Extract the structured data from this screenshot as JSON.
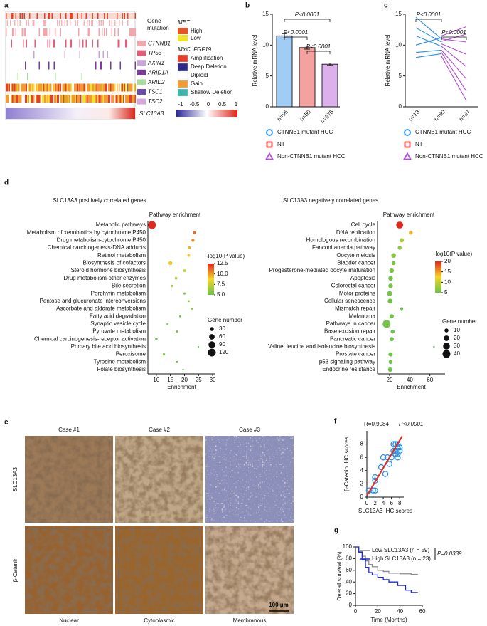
{
  "panel_labels": [
    "a",
    "b",
    "c",
    "d",
    "e",
    "f",
    "g"
  ],
  "panel_a": {
    "mutation_title": [
      "Gene",
      "mutation"
    ],
    "genes": [
      "CTNNB1",
      "TP53",
      "AXIN1",
      "ARID1A",
      "ARID2",
      "TSC1",
      "TSC2"
    ],
    "gene_colors": [
      "#f5a4a9",
      "#e65b78",
      "#c9a6da",
      "#7a3b9d",
      "#a9dc9c",
      "#6b4daf",
      "#d6a6dc"
    ],
    "met_title": "MET",
    "met_levels": [
      {
        "label": "High",
        "color": "#e8522a"
      },
      {
        "label": "Low",
        "color": "#f0e22c"
      }
    ],
    "cnv_title": "MYC, FGF19",
    "cnv_levels": [
      {
        "label": "Amplification",
        "color": "#e3402c"
      },
      {
        "label": "Deep Deletion",
        "color": "#2b2a8c"
      },
      {
        "label": "Diploid",
        "color": "#ffffff"
      },
      {
        "label": "Gain",
        "color": "#f39a35"
      },
      {
        "label": "Shallow Deletion",
        "color": "#3bb5ad"
      }
    ],
    "expression_label": "SLC13A3",
    "scale_ticks": [
      -1,
      -0.5,
      0,
      0.5,
      1
    ]
  },
  "panel_e": {
    "cases": [
      "Case  #1",
      "Case  #2",
      "Case  #3"
    ],
    "stains": [
      "SLC13A3",
      "β-Catenin"
    ],
    "patterns": [
      "Nuclear",
      "Cytoplasmic",
      "Membranous"
    ],
    "scale_bar": "100 μm"
  },
  "chart_data": [
    {
      "type": "bar",
      "ylabel": "Relative mRNA level",
      "categories": [
        "n=96",
        "n=50",
        "n=275"
      ],
      "ylim": [
        0,
        15
      ],
      "yticks": [
        0,
        5,
        10,
        15
      ],
      "series": [
        {
          "name": "CTNNB1 mutant HCC",
          "color": "#2e8fe6",
          "marker": "circle",
          "values": [
            11.5,
            null,
            null
          ],
          "errors": [
            0.35,
            null,
            null
          ]
        },
        {
          "name": "NT",
          "color": "#e5302a",
          "marker": "square",
          "values": [
            null,
            9.6,
            null
          ],
          "errors": [
            null,
            0.25,
            null
          ]
        },
        {
          "name": "Non-CTNNB1 mutant HCC",
          "color": "#b24fd6",
          "marker": "triangle",
          "values": [
            null,
            null,
            6.9
          ],
          "errors": [
            null,
            null,
            0.2
          ]
        }
      ],
      "annotations": [
        "P<0.0001",
        "P<0.0001",
        "P<0.0001"
      ]
    },
    {
      "type": "line",
      "ylabel": "Relative mRNA level",
      "categories": [
        "n=13",
        "n=50",
        "n=37"
      ],
      "ylim": [
        0,
        15
      ],
      "yticks": [
        0,
        5,
        10,
        15
      ],
      "series": [
        {
          "color": "#2e8fe6",
          "values": [
            14.5,
            11,
            null
          ]
        },
        {
          "color": "#2e8fe6",
          "values": [
            12.8,
            10.5,
            null
          ]
        },
        {
          "color": "#2e8fe6",
          "values": [
            11.5,
            9.8,
            null
          ]
        },
        {
          "color": "#2e8fe6",
          "values": [
            10,
            11.2,
            null
          ]
        },
        {
          "color": "#2e8fe6",
          "values": [
            8.8,
            9.2,
            null
          ]
        },
        {
          "color": "#2e8fe6",
          "values": [
            8,
            8.6,
            null
          ]
        },
        {
          "color": "#b24fd6",
          "values": [
            null,
            11.5,
            13
          ]
        },
        {
          "color": "#b24fd6",
          "values": [
            null,
            11,
            10.5
          ]
        },
        {
          "color": "#b24fd6",
          "values": [
            null,
            10.2,
            8.5
          ]
        },
        {
          "color": "#b24fd6",
          "values": [
            null,
            9.8,
            6.5
          ]
        },
        {
          "color": "#b24fd6",
          "values": [
            null,
            9.2,
            4.5
          ]
        },
        {
          "color": "#b24fd6",
          "values": [
            null,
            8.8,
            2.5
          ]
        },
        {
          "color": "#b24fd6",
          "values": [
            null,
            8.2,
            1
          ]
        },
        {
          "color": "#b24fd6",
          "values": [
            null,
            10.6,
            11.8
          ]
        }
      ],
      "legend": [
        {
          "name": "CTNNB1 mutant HCC",
          "color": "#2e8fe6",
          "marker": "circle"
        },
        {
          "name": "NT",
          "color": "#e5302a",
          "marker": "square"
        },
        {
          "name": "Non-CTNNB1 mutant HCC",
          "color": "#b24fd6",
          "marker": "triangle"
        }
      ],
      "annotations": [
        "P<0.0001",
        "P<0.0001"
      ]
    },
    {
      "type": "dot",
      "title": "SLC13A3  positively correlated genes",
      "subtitle": "Pathway enrichment",
      "xlabel": "Enrichment",
      "categories": [
        "Metabolic pathways",
        "Metabolism of xenobiotics by cytochrome P450",
        "Drug metabolism-cytochrome P450",
        "Chemical carcinogenesis-DNA adducts",
        "Retinol metabolism",
        "Biosynthesis of cofactors",
        "Steroid hormone biosynthesis",
        "Drug metabolism-other enzymes",
        "Bile secretion",
        "Porphyrin metabolism",
        "Pentose and glucuronate interconversions",
        "Ascorbate and aldarate metabolism",
        "Fatty acid degradation",
        "Synaptic vesicle cycle",
        "Pyruvate metabolism",
        "Chemical carcinogenesis-receptor activation",
        "Primary bile acid biosynthesis",
        "Peroxisome",
        "Tyrosine metabolism",
        "Folate biosynthesis"
      ],
      "x": [
        8.5,
        23.5,
        23,
        21.7,
        21.5,
        15,
        20,
        17,
        15.5,
        20,
        21.5,
        22.7,
        18.5,
        14,
        17.3,
        10,
        25,
        12.7,
        17.3,
        19.5
      ],
      "color_values": [
        12.8,
        11,
        10.2,
        9.6,
        9.2,
        9,
        7.2,
        7,
        6.5,
        6,
        6,
        6,
        5.5,
        5.5,
        5.5,
        5,
        4.6,
        5,
        5,
        5
      ],
      "sizes": [
        120,
        18,
        20,
        16,
        15,
        30,
        14,
        14,
        12,
        10,
        8,
        8,
        10,
        8,
        10,
        12,
        4,
        10,
        8,
        6
      ],
      "highlight": {
        "index": 0,
        "color": "#e5302a"
      },
      "xlim": [
        7,
        31
      ],
      "xticks": [
        10,
        15,
        20,
        25,
        30
      ],
      "colorbar_title": "-log10(P value)",
      "colorbar_colors": [
        "#6cc24a",
        "#f3d62a",
        "#e3281f"
      ],
      "colorbar_ticks": [
        {
          "value": 5,
          "label": "5.0"
        },
        7.5,
        {
          "value": 10,
          "label": "10.0"
        },
        12.5
      ],
      "size_title": "Gene number",
      "size_ticks": [
        30,
        60,
        90,
        120
      ]
    },
    {
      "type": "dot",
      "title": "SLC13A3  negatively correlated genes",
      "subtitle": "Pathway enrichment",
      "xlabel": "Enrichment",
      "categories": [
        "Cell cycle",
        "DNA replication",
        "Homologous recombination",
        "Fanconi anemia pathway",
        "Oocyte meiosis",
        "Bladder cancer",
        "Progesterone-mediated oocyte maturation",
        "Apoptosis",
        "Colorectal cancer",
        "Motor proteins",
        "Cellular senescence",
        "Mismatch repair",
        "Melanoma",
        "Pathways in cancer",
        "Base excision repair",
        "Pancreatic cancer",
        "Valine, leucine and isoleucine biosynthesis",
        "Prostate cancer",
        "p53 signaling pathway",
        "Endocrine resistance"
      ],
      "x": [
        30,
        41,
        32,
        30,
        24,
        24,
        22,
        21,
        21,
        20,
        20.5,
        32,
        22,
        17,
        23,
        22,
        64,
        21,
        21,
        20.5
      ],
      "color_values": [
        20,
        14,
        8,
        7,
        6.5,
        6,
        6,
        5.5,
        5.5,
        5.5,
        5.5,
        5,
        5,
        5.5,
        5,
        5,
        4,
        5,
        5,
        5
      ],
      "sizes": [
        32,
        10,
        12,
        10,
        14,
        10,
        14,
        14,
        14,
        16,
        16,
        6,
        12,
        40,
        10,
        12,
        2,
        12,
        10,
        12
      ],
      "highlight": {
        "index": 0,
        "color": "#e5302a"
      },
      "xlim": [
        8,
        75
      ],
      "xticks": [
        20,
        40,
        60
      ],
      "colorbar_title": "-log10(P value)",
      "colorbar_colors": [
        "#6cc24a",
        "#f3d62a",
        "#e3281f"
      ],
      "colorbar_ticks": [
        5,
        10,
        15,
        20
      ],
      "size_title": "Gene number",
      "size_ticks": [
        10,
        20,
        30,
        40
      ]
    },
    {
      "type": "scatter",
      "xlabel": "SLC13A3 IHC scores",
      "ylabel": "β-Catenin IHC scores",
      "x": [
        0.5,
        1.5,
        2,
        2,
        2,
        3.5,
        4,
        4.5,
        5,
        5.5,
        6,
        6.5,
        6.5,
        7,
        7,
        7.5,
        7.5,
        7.5,
        7.5,
        8,
        8,
        7
      ],
      "y": [
        1,
        1,
        1,
        2.5,
        3,
        4.5,
        6,
        3.5,
        6,
        5,
        6,
        7,
        8,
        6.5,
        7,
        8,
        7.5,
        6,
        6.5,
        7,
        7.5,
        8
      ],
      "color": "#2e8fe6",
      "fit": {
        "x": [
          0,
          8.6
        ],
        "y": [
          0.2,
          9.2
        ],
        "color": "#e3281f"
      },
      "xlim": [
        0,
        9
      ],
      "ylim": [
        0,
        10
      ],
      "xticks": [
        0,
        2,
        4,
        6,
        8
      ],
      "yticks": [
        0,
        2,
        4,
        6,
        8
      ],
      "annotations": [
        "R=0.9084",
        "P<0.0001"
      ]
    },
    {
      "type": "survival",
      "xlabel": "Time (Months)",
      "ylabel": "Overall survival (%)",
      "series": [
        {
          "name": "Low SLC13A3 (n = 59)",
          "color": "#8c8c8c",
          "x": [
            0,
            3,
            6,
            9,
            12,
            15,
            20,
            25,
            30,
            40,
            50,
            56
          ],
          "values": [
            100,
            92,
            84,
            76,
            70,
            66,
            60,
            58,
            55,
            54,
            53,
            53
          ]
        },
        {
          "name": "High SLC13A3 (n = 23)",
          "color": "#1f2bd6",
          "x": [
            0,
            3,
            6,
            9,
            12,
            15,
            20,
            25,
            30,
            38,
            45,
            50,
            56
          ],
          "values": [
            100,
            91,
            78,
            65,
            56,
            52,
            48,
            44,
            40,
            34,
            26,
            22,
            22
          ]
        }
      ],
      "xlim": [
        0,
        60
      ],
      "ylim": [
        0,
        100
      ],
      "xticks": [
        0,
        20,
        40,
        60
      ],
      "yticks": [
        0,
        20,
        40,
        60,
        80,
        100
      ],
      "annotations": [
        "P=0.0339"
      ]
    }
  ]
}
